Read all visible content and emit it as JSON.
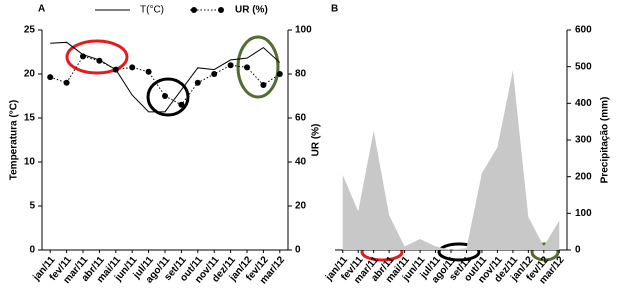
{
  "chart_data": [
    {
      "type": "line",
      "panel": "A",
      "categories": [
        "jan/11",
        "fev/11",
        "mar/11",
        "abr/11",
        "mai/11",
        "jun/11",
        "jul/11",
        "ago/11",
        "set/11",
        "out/11",
        "nov/11",
        "dez/11",
        "jan/12",
        "fev/12",
        "mar/12"
      ],
      "y_label": "Temperatura (°C)",
      "y2_label": "UR (%)",
      "ylim": [
        0,
        25
      ],
      "yticks": [
        0,
        5,
        10,
        15,
        20,
        25
      ],
      "y2lim": [
        0,
        100
      ],
      "y2ticks": [
        0,
        20,
        40,
        60,
        80,
        100
      ],
      "series": [
        {
          "name": "T(°C)",
          "color": "#000000",
          "values": [
            23.5,
            23.6,
            22.2,
            21.6,
            20.5,
            17.6,
            15.7,
            15.7,
            18.2,
            20.7,
            20.5,
            21.6,
            21.8,
            23.0,
            21.3
          ]
        },
        {
          "name": "UR (%)",
          "color": "#000000",
          "axis": "y2",
          "values": [
            78.6,
            76,
            88,
            86,
            82,
            83,
            81,
            70,
            66,
            76,
            80,
            84,
            83,
            75,
            80
          ]
        }
      ]
    },
    {
      "type": "area",
      "panel": "B",
      "categories": [
        "jan/11",
        "fev/11",
        "mar/11",
        "abr/11",
        "mai/11",
        "jun/11",
        "jul/11",
        "ago/11",
        "set/11",
        "out/11",
        "nov/11",
        "dez/11",
        "jan/12",
        "fev/12",
        "mar/12"
      ],
      "y_label": "Precipitação (mm)",
      "y_axis_position": "right",
      "ylim": [
        0,
        600
      ],
      "yticks": [
        0,
        100,
        200,
        300,
        400,
        500,
        600
      ],
      "color": "#c8c8c8",
      "values": [
        205,
        105,
        325,
        95,
        10,
        30,
        10,
        0,
        5,
        210,
        280,
        490,
        90,
        10,
        80
      ]
    }
  ]
}
